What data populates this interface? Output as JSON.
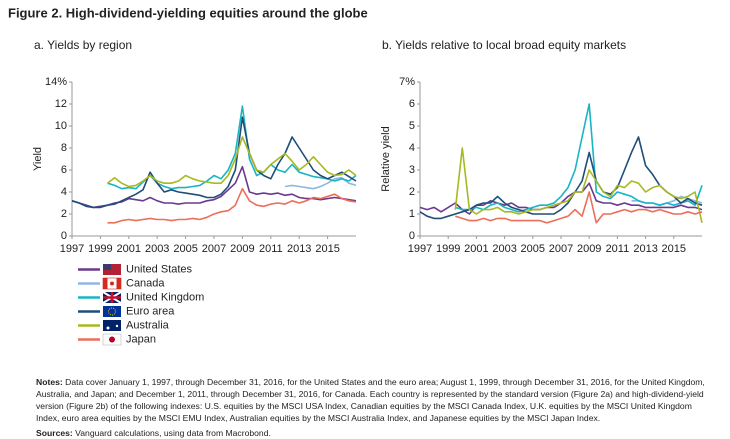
{
  "title": "Figure 2. High-dividend-yielding equities around the globe",
  "chart_data": [
    {
      "type": "line",
      "title": "a. Yields by region",
      "ylabel": "Yield",
      "x": [
        1997,
        1997.5,
        1998,
        1998.5,
        1999,
        1999.5,
        2000,
        2000.5,
        2001,
        2001.5,
        2002,
        2002.5,
        2003,
        2003.5,
        2004,
        2004.5,
        2005,
        2005.5,
        2006,
        2006.5,
        2007,
        2007.5,
        2008,
        2008.5,
        2009,
        2009.5,
        2010,
        2010.5,
        2011,
        2011.5,
        2012,
        2012.5,
        2013,
        2013.5,
        2014,
        2014.5,
        2015,
        2015.5,
        2016,
        2016.5,
        2017
      ],
      "xlim": [
        1997,
        2017
      ],
      "xticks": [
        1997,
        1999,
        2001,
        2003,
        2005,
        2007,
        2009,
        2011,
        2013,
        2015
      ],
      "ylim": [
        0,
        14
      ],
      "yticks": [
        0,
        2,
        4,
        6,
        8,
        10,
        12,
        {
          "value": 14,
          "label": "14%"
        }
      ],
      "grid": false,
      "series": [
        {
          "name": "United States",
          "color": "#6b3a8f",
          "values": [
            3.2,
            3.0,
            2.8,
            2.6,
            2.7,
            2.8,
            3.0,
            3.1,
            3.4,
            3.3,
            3.2,
            3.5,
            3.2,
            3.0,
            3.0,
            2.9,
            3.0,
            3.0,
            3.0,
            3.2,
            3.3,
            3.6,
            4.2,
            4.8,
            6.3,
            4.0,
            3.8,
            3.9,
            3.8,
            3.9,
            3.7,
            3.8,
            3.5,
            3.4,
            3.4,
            3.3,
            3.4,
            3.5,
            3.4,
            3.3,
            3.2
          ]
        },
        {
          "name": "Canada",
          "color": "#8fb8e0",
          "values": [
            null,
            null,
            null,
            null,
            null,
            null,
            null,
            null,
            null,
            null,
            null,
            null,
            null,
            null,
            null,
            null,
            null,
            null,
            null,
            null,
            null,
            null,
            null,
            null,
            null,
            null,
            null,
            null,
            null,
            null,
            4.5,
            4.6,
            4.5,
            4.4,
            4.3,
            4.5,
            4.8,
            5.2,
            5.3,
            4.8,
            4.6
          ]
        },
        {
          "name": "United Kingdom",
          "color": "#18b5c4",
          "values": [
            null,
            null,
            null,
            null,
            null,
            4.8,
            4.6,
            4.3,
            4.4,
            4.3,
            4.9,
            5.5,
            4.8,
            4.5,
            4.3,
            4.4,
            4.4,
            4.5,
            4.6,
            5.0,
            5.5,
            5.2,
            6.0,
            7.5,
            11.8,
            7.0,
            5.5,
            5.8,
            6.5,
            6.0,
            5.8,
            6.5,
            5.8,
            5.6,
            5.4,
            5.3,
            5.2,
            5.0,
            5.2,
            5.0,
            5.5
          ]
        },
        {
          "name": "Euro area",
          "color": "#1f4e79",
          "values": [
            3.2,
            3.0,
            2.7,
            2.6,
            2.6,
            2.8,
            2.9,
            3.2,
            3.5,
            3.8,
            4.2,
            5.8,
            4.8,
            4.0,
            4.2,
            4.0,
            3.9,
            3.8,
            3.7,
            3.5,
            3.5,
            3.8,
            4.5,
            6.0,
            10.8,
            7.5,
            6.0,
            5.5,
            5.2,
            6.5,
            7.5,
            9.0,
            8.0,
            7.0,
            6.0,
            5.5,
            5.2,
            5.5,
            5.8,
            5.4,
            5.0
          ]
        },
        {
          "name": "Australia",
          "color": "#a8b920",
          "values": [
            null,
            null,
            null,
            null,
            null,
            4.8,
            5.3,
            4.8,
            4.5,
            4.6,
            5.0,
            5.5,
            5.0,
            4.8,
            4.8,
            5.0,
            5.5,
            5.2,
            5.0,
            4.9,
            4.8,
            4.8,
            5.5,
            7.0,
            9.0,
            7.5,
            6.0,
            5.8,
            6.5,
            7.0,
            7.5,
            6.8,
            6.0,
            6.5,
            7.2,
            6.5,
            5.8,
            5.5,
            5.6,
            6.0,
            5.5
          ]
        },
        {
          "name": "Japan",
          "color": "#ec6f5a",
          "values": [
            null,
            null,
            null,
            null,
            null,
            1.2,
            1.2,
            1.4,
            1.5,
            1.4,
            1.5,
            1.6,
            1.5,
            1.5,
            1.4,
            1.5,
            1.5,
            1.6,
            1.5,
            1.7,
            2.0,
            2.2,
            2.3,
            2.8,
            4.3,
            3.2,
            2.8,
            2.7,
            2.9,
            3.0,
            2.9,
            3.2,
            3.0,
            3.2,
            3.5,
            3.4,
            3.6,
            3.8,
            3.4,
            3.2,
            3.1
          ]
        }
      ]
    },
    {
      "type": "line",
      "title": "b. Yields relative to local broad equity markets",
      "ylabel": "Relative yield",
      "x": [
        1997,
        1997.5,
        1998,
        1998.5,
        1999,
        1999.5,
        2000,
        2000.5,
        2001,
        2001.5,
        2002,
        2002.5,
        2003,
        2003.5,
        2004,
        2004.5,
        2005,
        2005.5,
        2006,
        2006.5,
        2007,
        2007.5,
        2008,
        2008.5,
        2009,
        2009.5,
        2010,
        2010.5,
        2011,
        2011.5,
        2012,
        2012.5,
        2013,
        2013.5,
        2014,
        2014.5,
        2015,
        2015.5,
        2016,
        2016.5,
        2017
      ],
      "xlim": [
        1997,
        2017
      ],
      "xticks": [
        1997,
        1999,
        2001,
        2003,
        2005,
        2007,
        2009,
        2011,
        2013,
        2015
      ],
      "ylim": [
        0,
        7
      ],
      "yticks": [
        0,
        1,
        2,
        3,
        4,
        5,
        6,
        {
          "value": 7,
          "label": "7%"
        }
      ],
      "grid": false,
      "series": [
        {
          "color": "#6b3a8f",
          "values": [
            1.3,
            1.2,
            1.3,
            1.1,
            1.3,
            1.5,
            1.2,
            1.0,
            1.4,
            1.4,
            1.6,
            1.5,
            1.4,
            1.5,
            1.3,
            1.3,
            1.2,
            1.2,
            1.3,
            1.3,
            1.5,
            1.8,
            2.0,
            2.0,
            2.4,
            1.6,
            1.5,
            1.5,
            1.4,
            1.5,
            1.4,
            1.4,
            1.3,
            1.3,
            1.3,
            1.3,
            1.3,
            1.4,
            1.3,
            1.3,
            1.2
          ]
        },
        {
          "color": "#8fb8e0",
          "values": [
            null,
            null,
            null,
            null,
            null,
            null,
            null,
            null,
            null,
            null,
            null,
            null,
            null,
            null,
            null,
            null,
            null,
            null,
            null,
            null,
            null,
            null,
            null,
            null,
            null,
            null,
            null,
            null,
            null,
            null,
            1.6,
            1.6,
            1.5,
            1.5,
            1.4,
            1.5,
            1.6,
            1.8,
            1.7,
            1.6,
            1.5
          ]
        },
        {
          "color": "#18b5c4",
          "values": [
            null,
            null,
            null,
            null,
            null,
            1.3,
            1.2,
            1.2,
            1.3,
            1.2,
            1.4,
            1.5,
            1.3,
            1.2,
            1.1,
            1.2,
            1.3,
            1.4,
            1.4,
            1.5,
            1.8,
            2.2,
            3.0,
            4.5,
            6.0,
            2.0,
            1.8,
            1.7,
            2.0,
            1.9,
            1.8,
            1.6,
            1.5,
            1.5,
            1.4,
            1.5,
            1.4,
            1.5,
            1.6,
            1.4,
            2.3
          ]
        },
        {
          "color": "#1f4e79",
          "values": [
            1.1,
            0.9,
            0.8,
            0.8,
            0.9,
            1.0,
            1.1,
            1.2,
            1.4,
            1.5,
            1.5,
            1.8,
            1.5,
            1.3,
            1.2,
            1.1,
            1.0,
            1.0,
            1.0,
            1.0,
            1.2,
            1.5,
            2.0,
            2.5,
            3.8,
            2.5,
            2.0,
            1.9,
            2.2,
            3.0,
            3.8,
            4.5,
            3.2,
            2.8,
            2.3,
            2.0,
            1.8,
            1.5,
            1.7,
            1.5,
            1.4
          ]
        },
        {
          "color": "#a8b920",
          "values": [
            null,
            null,
            null,
            null,
            null,
            1.2,
            4.0,
            1.2,
            1.0,
            1.2,
            1.2,
            1.3,
            1.1,
            1.1,
            1.0,
            1.1,
            1.2,
            1.2,
            1.3,
            1.4,
            1.5,
            1.6,
            2.0,
            2.0,
            3.0,
            2.5,
            2.0,
            1.8,
            2.3,
            2.2,
            2.5,
            2.4,
            2.0,
            2.2,
            2.3,
            2.0,
            1.8,
            1.7,
            1.8,
            2.0,
            0.6
          ]
        },
        {
          "color": "#ec6f5a",
          "values": [
            null,
            null,
            null,
            null,
            null,
            0.9,
            0.8,
            0.7,
            0.7,
            0.8,
            0.7,
            0.8,
            0.8,
            0.7,
            0.7,
            0.7,
            0.7,
            0.7,
            0.6,
            0.7,
            0.8,
            0.9,
            1.2,
            0.9,
            2.0,
            0.6,
            1.0,
            1.0,
            1.1,
            1.2,
            1.1,
            1.2,
            1.2,
            1.1,
            1.2,
            1.1,
            1.0,
            1.0,
            1.1,
            1.0,
            1.1
          ]
        }
      ]
    }
  ],
  "notes": {
    "label": "Notes:",
    "text": "Data cover January 1, 1997, through December 31, 2016, for the United States and the euro area; August 1, 1999, through December 31, 2016, for the United Kingdom, Australia, and Japan; and December 1, 2011, through December 31, 2016, for Canada. Each country is represented by the standard version (Figure 2a) and high-dividend-yield version (Figure 2b) of the following indexes: U.S. equities by the MSCI USA Index, Canadian equities by the MSCI Canada Index, U.K. equities by the MSCI United Kingdom Index, euro area equities by the MSCI EMU Index, Australian equities by the MSCI Australia Index, and Japanese equities by the MSCI Japan Index."
  },
  "sources": {
    "label": "Sources:",
    "text": "Vanguard calculations, using data from Macrobond."
  }
}
